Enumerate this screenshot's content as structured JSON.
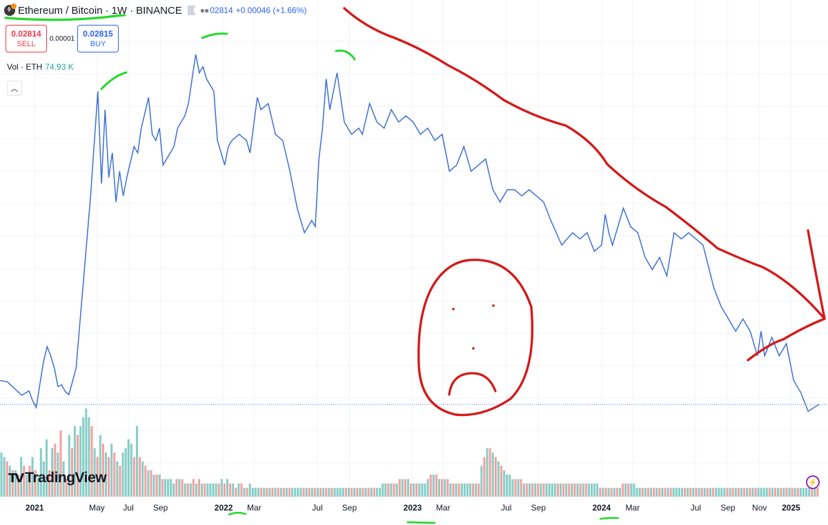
{
  "header": {
    "symbol_icon": "eth-btc-coin-icon",
    "symbol_name": "Ethereum / Bitcoin",
    "interval": "1W",
    "exchange": "BINANCE",
    "last_close": "02814",
    "change": "+0.00046 (+1.66%)"
  },
  "trade": {
    "sell_price": "0.02814",
    "sell_label": "SELL",
    "spread": "0.00001",
    "buy_price": "0.02815",
    "buy_label": "BUY"
  },
  "volume": {
    "label": "Vol · ETH",
    "value": "74.93 K"
  },
  "logo": {
    "text": "TradingView"
  },
  "colors": {
    "price_line": "#3c6fd6",
    "volume_up": "#26a69a",
    "volume_down": "#ef5350",
    "drawing_red": "#d41a1a",
    "drawing_green": "#25d92a",
    "gridline": "#f0f3fa"
  },
  "chart_data": {
    "type": "line",
    "title": "Ethereum / Bitcoin · 1W · BINANCE",
    "x_ticks": [
      "2021",
      "May",
      "Jul",
      "Sep",
      "2022",
      "Mar",
      "Jul",
      "Sep",
      "2023",
      "Mar",
      "Jul",
      "Sep",
      "2024",
      "Mar",
      "Jul",
      "Sep",
      "Nov",
      "2025"
    ],
    "x_tick_bold": [
      "2021",
      "2022",
      "2023",
      "2024",
      "2025"
    ],
    "ylim": [
      0.026,
      0.088
    ],
    "x_range": [
      "2020-10-26",
      "2025-02-24"
    ],
    "series": [
      {
        "values": [
          [
            "2020-10-26",
            0.032
          ],
          [
            "2020-11-09",
            0.0318
          ],
          [
            "2020-11-23",
            0.0307
          ],
          [
            "2020-12-07",
            0.0296
          ],
          [
            "2020-12-21",
            0.0303
          ],
          [
            "2020-12-28",
            0.0287
          ],
          [
            "2021-01-04",
            0.0276
          ],
          [
            "2021-01-11",
            0.0314
          ],
          [
            "2021-01-18",
            0.035
          ],
          [
            "2021-01-25",
            0.0375
          ],
          [
            "2021-02-01",
            0.036
          ],
          [
            "2021-02-08",
            0.034
          ],
          [
            "2021-02-15",
            0.031
          ],
          [
            "2021-02-22",
            0.0313
          ],
          [
            "2021-03-01",
            0.0302
          ],
          [
            "2021-03-08",
            0.0297
          ],
          [
            "2021-03-15",
            0.0318
          ],
          [
            "2021-03-22",
            0.034
          ],
          [
            "2021-03-29",
            0.041
          ],
          [
            "2021-04-05",
            0.048
          ],
          [
            "2021-04-19",
            0.062
          ],
          [
            "2021-05-03",
            0.079
          ],
          [
            "2021-05-10",
            0.064
          ],
          [
            "2021-05-17",
            0.076
          ],
          [
            "2021-05-24",
            0.065
          ],
          [
            "2021-05-31",
            0.069
          ],
          [
            "2021-06-07",
            0.061
          ],
          [
            "2021-06-14",
            0.066
          ],
          [
            "2021-06-21",
            0.062
          ],
          [
            "2021-06-28",
            0.065
          ],
          [
            "2021-07-12",
            0.07
          ],
          [
            "2021-07-19",
            0.069
          ],
          [
            "2021-07-26",
            0.073
          ],
          [
            "2021-08-09",
            0.078
          ],
          [
            "2021-08-16",
            0.072
          ],
          [
            "2021-08-23",
            0.071
          ],
          [
            "2021-08-30",
            0.073
          ],
          [
            "2021-09-06",
            0.067
          ],
          [
            "2021-09-13",
            0.068
          ],
          [
            "2021-09-27",
            0.07
          ],
          [
            "2021-10-04",
            0.073
          ],
          [
            "2021-10-11",
            0.074
          ],
          [
            "2021-10-18",
            0.075
          ],
          [
            "2021-10-25",
            0.077
          ],
          [
            "2021-11-08",
            0.085
          ],
          [
            "2021-11-15",
            0.082
          ],
          [
            "2021-11-22",
            0.083
          ],
          [
            "2021-11-29",
            0.081
          ],
          [
            "2021-12-13",
            0.079
          ],
          [
            "2021-12-20",
            0.071
          ],
          [
            "2021-12-27",
            0.069
          ],
          [
            "2022-01-03",
            0.067
          ],
          [
            "2022-01-10",
            0.07
          ],
          [
            "2022-01-17",
            0.071
          ],
          [
            "2022-01-31",
            0.072
          ],
          [
            "2022-02-14",
            0.071
          ],
          [
            "2022-02-21",
            0.069
          ],
          [
            "2022-03-07",
            0.078
          ],
          [
            "2022-03-14",
            0.076
          ],
          [
            "2022-03-28",
            0.077
          ],
          [
            "2022-04-11",
            0.072
          ],
          [
            "2022-04-25",
            0.071
          ],
          [
            "2022-05-09",
            0.066
          ],
          [
            "2022-05-23",
            0.06
          ],
          [
            "2022-06-06",
            0.056
          ],
          [
            "2022-06-20",
            0.058
          ],
          [
            "2022-06-27",
            0.057
          ],
          [
            "2022-07-04",
            0.068
          ],
          [
            "2022-07-11",
            0.073
          ],
          [
            "2022-07-18",
            0.081
          ],
          [
            "2022-07-25",
            0.076
          ],
          [
            "2022-08-08",
            0.082
          ],
          [
            "2022-08-22",
            0.074
          ],
          [
            "2022-09-05",
            0.072
          ],
          [
            "2022-09-19",
            0.073
          ],
          [
            "2022-09-26",
            0.072
          ],
          [
            "2022-10-10",
            0.077
          ],
          [
            "2022-10-24",
            0.074
          ],
          [
            "2022-11-07",
            0.073
          ],
          [
            "2022-11-21",
            0.076
          ],
          [
            "2022-12-05",
            0.074
          ],
          [
            "2022-12-19",
            0.075
          ],
          [
            "2023-01-02",
            0.074
          ],
          [
            "2023-01-16",
            0.072
          ],
          [
            "2023-01-30",
            0.073
          ],
          [
            "2023-02-13",
            0.071
          ],
          [
            "2023-02-27",
            0.072
          ],
          [
            "2023-03-13",
            0.066
          ],
          [
            "2023-03-27",
            0.067
          ],
          [
            "2023-04-10",
            0.07
          ],
          [
            "2023-04-24",
            0.066
          ],
          [
            "2023-05-08",
            0.067
          ],
          [
            "2023-05-22",
            0.068
          ],
          [
            "2023-06-05",
            0.063
          ],
          [
            "2023-06-19",
            0.061
          ],
          [
            "2023-07-03",
            0.063
          ],
          [
            "2023-07-17",
            0.063
          ],
          [
            "2023-07-31",
            0.062
          ],
          [
            "2023-08-14",
            0.063
          ],
          [
            "2023-08-28",
            0.062
          ],
          [
            "2023-09-11",
            0.061
          ],
          [
            "2023-09-25",
            0.058
          ],
          [
            "2023-10-16",
            0.054
          ],
          [
            "2023-11-06",
            0.056
          ],
          [
            "2023-11-20",
            0.055
          ],
          [
            "2023-12-04",
            0.056
          ],
          [
            "2023-12-18",
            0.053
          ],
          [
            "2024-01-01",
            0.054
          ],
          [
            "2024-01-08",
            0.059
          ],
          [
            "2024-01-15",
            0.056
          ],
          [
            "2024-01-22",
            0.054
          ],
          [
            "2024-01-29",
            0.056
          ],
          [
            "2024-02-12",
            0.06
          ],
          [
            "2024-02-26",
            0.057
          ],
          [
            "2024-03-11",
            0.056
          ],
          [
            "2024-03-25",
            0.052
          ],
          [
            "2024-04-08",
            0.05
          ],
          [
            "2024-04-22",
            0.052
          ],
          [
            "2024-05-06",
            0.049
          ],
          [
            "2024-05-20",
            0.056
          ],
          [
            "2024-06-03",
            0.055
          ],
          [
            "2024-06-17",
            0.056
          ],
          [
            "2024-07-01",
            0.055
          ],
          [
            "2024-07-15",
            0.054
          ],
          [
            "2024-08-05",
            0.047
          ],
          [
            "2024-08-19",
            0.044
          ],
          [
            "2024-09-02",
            0.042
          ],
          [
            "2024-09-16",
            0.04
          ],
          [
            "2024-09-30",
            0.042
          ],
          [
            "2024-10-14",
            0.04
          ],
          [
            "2024-10-28",
            0.036
          ],
          [
            "2024-11-04",
            0.04
          ],
          [
            "2024-11-11",
            0.036
          ],
          [
            "2024-11-25",
            0.039
          ],
          [
            "2024-12-09",
            0.036
          ],
          [
            "2024-12-23",
            0.038
          ],
          [
            "2025-01-06",
            0.032
          ],
          [
            "2025-01-20",
            0.03
          ],
          [
            "2025-02-03",
            0.027
          ],
          [
            "2025-02-24",
            0.0281
          ]
        ]
      }
    ],
    "volume": [
      10,
      9,
      8,
      7,
      6,
      6,
      5,
      9,
      7,
      5,
      7,
      9,
      6,
      5,
      11,
      8,
      13,
      6,
      11,
      12,
      10,
      15,
      8,
      4,
      14,
      11,
      16,
      14,
      16,
      18,
      20,
      18,
      16,
      11,
      9,
      14,
      12,
      10,
      9,
      12,
      10,
      8,
      7,
      10,
      11,
      13,
      12,
      9,
      16,
      9,
      8,
      7,
      6,
      6,
      5,
      5,
      5,
      4,
      4,
      4,
      4,
      3,
      4,
      4,
      4,
      3,
      3,
      3,
      4,
      3,
      4,
      3,
      3,
      3,
      3,
      3,
      3,
      3,
      4,
      3,
      4,
      3,
      3,
      2,
      3,
      3,
      2,
      2,
      3,
      2,
      2,
      2,
      2,
      2,
      2,
      2,
      2,
      2,
      2,
      2,
      2,
      2,
      2,
      2,
      2,
      2,
      2,
      2,
      2,
      2,
      2,
      2,
      2,
      2,
      2,
      2,
      2,
      2,
      2,
      2,
      2,
      2,
      2,
      2,
      2,
      2,
      2,
      2,
      2,
      2,
      2,
      2,
      2,
      2,
      2,
      3,
      3,
      3,
      3,
      3,
      3,
      4,
      4,
      4,
      4,
      3,
      3,
      3,
      3,
      3,
      3,
      4,
      5,
      5,
      5,
      4,
      4,
      4,
      4,
      3,
      3,
      3,
      3,
      3,
      3,
      3,
      3,
      3,
      3,
      3,
      7,
      9,
      11,
      11,
      10,
      9,
      8,
      7,
      6,
      5,
      5,
      4,
      4,
      4,
      4,
      3,
      3,
      3,
      3,
      3,
      3,
      3,
      3,
      3,
      3,
      3,
      3,
      3,
      3,
      3,
      3,
      3,
      3,
      3,
      3,
      3,
      3,
      3,
      3,
      3,
      3,
      3,
      2,
      2,
      2,
      2,
      2,
      2,
      2,
      2,
      3,
      3,
      3,
      3,
      3,
      2,
      2,
      2,
      2,
      2,
      2,
      2,
      2,
      2,
      2,
      2,
      2,
      2,
      2,
      2,
      2,
      2,
      2,
      2,
      2,
      2,
      2,
      2,
      2,
      2,
      2,
      2,
      2,
      2,
      2,
      2,
      2,
      2,
      2,
      2,
      2,
      2,
      2,
      2,
      2,
      2,
      2,
      2,
      2,
      2,
      2,
      2,
      2,
      2,
      2,
      2,
      2,
      2,
      2,
      2,
      2,
      2,
      2,
      2,
      2,
      2,
      2,
      2,
      2,
      2
    ]
  }
}
